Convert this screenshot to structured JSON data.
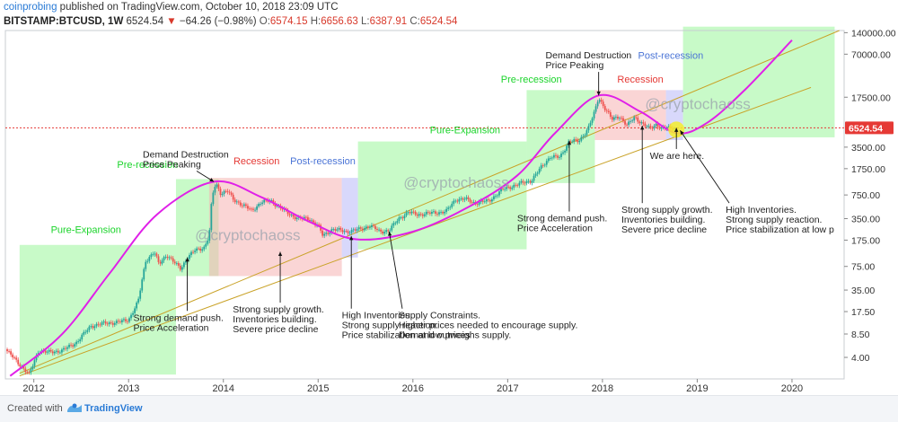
{
  "header": {
    "author": "coinprobing",
    "published_text": "published on TradingView.com, October 10, 2018 23:09 UTC",
    "symbol": "BITSTAMP:BTCUSD, 1W",
    "last_price": "6524.54",
    "change_arrow": "▼",
    "change": "−64.26 (−0.98%)",
    "o_label": "O:",
    "o_value": "6574.15",
    "h_label": "H:",
    "h_value": "6656.63",
    "l_label": "L:",
    "l_value": "6387.91",
    "c_label": "C:",
    "c_value": "6524.54"
  },
  "footer": {
    "created_with": "Created with",
    "brand": "TradingView",
    "logo_icon": "tradingview-logo-icon"
  },
  "colors": {
    "candle_up": "#26a69a",
    "candle_down": "#ef5350",
    "curve": "#e020e8",
    "trendline": "#c9a227",
    "expansion": "#9af59a",
    "recession": "#f5b3b3",
    "post_recession": "#b8b8f7",
    "price_line": "#e53935",
    "watermark": "#9aa3ad",
    "label_green": "#1bd42b",
    "label_red": "#e53935",
    "label_blue": "#4a74d6"
  },
  "chart_data": {
    "type": "candlestick",
    "scale": "log",
    "x_ticks": [
      "2012",
      "2013",
      "2014",
      "2015",
      "2016",
      "2017",
      "2018",
      "2019",
      "2020"
    ],
    "y_ticks": [
      "140000.00",
      "70000.00",
      "17500.00",
      "6524.54",
      "3500.00",
      "1750.00",
      "750.00",
      "350.00",
      "175.00",
      "75.00",
      "35.00",
      "17.50",
      "8.50",
      "4.00"
    ],
    "current_price": 6524.54,
    "weekly_close_path": [
      [
        2011.7,
        5.2
      ],
      [
        2011.85,
        3.2
      ],
      [
        2011.95,
        2.3
      ],
      [
        2012.05,
        5.0
      ],
      [
        2012.15,
        4.7
      ],
      [
        2012.3,
        5.0
      ],
      [
        2012.45,
        6.5
      ],
      [
        2012.6,
        11.0
      ],
      [
        2012.75,
        12.0
      ],
      [
        2012.9,
        12.5
      ],
      [
        2013.0,
        13.5
      ],
      [
        2013.1,
        24.0
      ],
      [
        2013.18,
        90.0
      ],
      [
        2013.27,
        120.0
      ],
      [
        2013.32,
        80.0
      ],
      [
        2013.4,
        110.0
      ],
      [
        2013.5,
        80.0
      ],
      [
        2013.55,
        70.0
      ],
      [
        2013.62,
        100.0
      ],
      [
        2013.7,
        125.0
      ],
      [
        2013.8,
        140.0
      ],
      [
        2013.85,
        200.0
      ],
      [
        2013.88,
        700.0
      ],
      [
        2013.92,
        1100.0
      ],
      [
        2013.97,
        800.0
      ],
      [
        2014.05,
        850.0
      ],
      [
        2014.1,
        650.0
      ],
      [
        2014.2,
        550.0
      ],
      [
        2014.3,
        450.0
      ],
      [
        2014.4,
        600.0
      ],
      [
        2014.5,
        620.0
      ],
      [
        2014.6,
        500.0
      ],
      [
        2014.7,
        400.0
      ],
      [
        2014.8,
        350.0
      ],
      [
        2014.9,
        350.0
      ],
      [
        2015.0,
        280.0
      ],
      [
        2015.05,
        200.0
      ],
      [
        2015.15,
        250.0
      ],
      [
        2015.3,
        230.0
      ],
      [
        2015.45,
        250.0
      ],
      [
        2015.55,
        280.0
      ],
      [
        2015.65,
        230.0
      ],
      [
        2015.75,
        240.0
      ],
      [
        2015.85,
        350.0
      ],
      [
        2015.95,
        430.0
      ],
      [
        2016.05,
        400.0
      ],
      [
        2016.2,
        420.0
      ],
      [
        2016.35,
        440.0
      ],
      [
        2016.45,
        650.0
      ],
      [
        2016.55,
        660.0
      ],
      [
        2016.65,
        580.0
      ],
      [
        2016.8,
        620.0
      ],
      [
        2016.95,
        900.0
      ],
      [
        2017.05,
        1000.0
      ],
      [
        2017.15,
        1100.0
      ],
      [
        2017.25,
        1200.0
      ],
      [
        2017.35,
        1800.0
      ],
      [
        2017.45,
        2600.0
      ],
      [
        2017.55,
        2500.0
      ],
      [
        2017.65,
        4300.0
      ],
      [
        2017.75,
        4200.0
      ],
      [
        2017.85,
        6500.0
      ],
      [
        2017.92,
        11000.0
      ],
      [
        2017.96,
        17500.0
      ],
      [
        2018.0,
        14000.0
      ],
      [
        2018.05,
        11000.0
      ],
      [
        2018.1,
        8500.0
      ],
      [
        2018.18,
        9500.0
      ],
      [
        2018.26,
        7000.0
      ],
      [
        2018.34,
        9200.0
      ],
      [
        2018.42,
        7500.0
      ],
      [
        2018.5,
        6300.0
      ],
      [
        2018.57,
        7400.0
      ],
      [
        2018.62,
        6400.0
      ],
      [
        2018.7,
        6500.0
      ],
      [
        2018.77,
        6524.54
      ]
    ],
    "phases": [
      {
        "name": "Pure-Expansion",
        "kind": "expansion",
        "x0": 2011.85,
        "x1": 2013.5,
        "y_low": 2.3,
        "y_high": 150
      },
      {
        "name": "Pre-recession",
        "kind": "expansion",
        "x0": 2013.5,
        "x1": 2013.95,
        "y_low": 55,
        "y_high": 1250
      },
      {
        "name": "Recession",
        "kind": "recession",
        "x0": 2013.85,
        "x1": 2015.25,
        "y_low": 55,
        "y_high": 1300
      },
      {
        "name": "Post-recession",
        "kind": "post_recession",
        "x0": 2015.25,
        "x1": 2015.42,
        "y_low": 100,
        "y_high": 1300
      },
      {
        "name": "Pure-Expansion",
        "kind": "expansion",
        "x0": 2015.42,
        "x1": 2017.2,
        "y_low": 130,
        "y_high": 4200
      },
      {
        "name": "Pre-recession",
        "kind": "expansion",
        "x0": 2017.2,
        "x1": 2017.92,
        "y_low": 1100,
        "y_high": 22000
      },
      {
        "name": "Recession",
        "kind": "recession",
        "x0": 2017.92,
        "x1": 2018.67,
        "y_low": 4400,
        "y_high": 22000
      },
      {
        "name": "Post-recession",
        "kind": "post_recession",
        "x0": 2018.67,
        "x1": 2018.85,
        "y_low": 4400,
        "y_high": 22000
      },
      {
        "name": "",
        "kind": "expansion",
        "x0": 2018.85,
        "x1": 2020.45,
        "y_low": 4800,
        "y_high": 170000
      }
    ],
    "phase_labels": [
      {
        "text": "Pure-Expansion",
        "color": "label_green",
        "x": 2012.55,
        "y": 220
      },
      {
        "text": "Pre-recession",
        "color": "label_green",
        "x": 2013.2,
        "y": 1800
      },
      {
        "text": "Recession",
        "color": "label_red",
        "x": 2014.35,
        "y": 2000
      },
      {
        "text": "Post-recession",
        "color": "label_blue",
        "x": 2015.05,
        "y": 2000
      },
      {
        "text": "Pure-Expansion",
        "color": "label_green",
        "x": 2016.55,
        "y": 5500
      },
      {
        "text": "Pre-recession",
        "color": "label_green",
        "x": 2017.25,
        "y": 28000
      },
      {
        "text": "Recession",
        "color": "label_red",
        "x": 2018.4,
        "y": 28000
      },
      {
        "text": "Post-recession",
        "color": "label_blue",
        "x": 2018.72,
        "y": 60000
      }
    ],
    "cycle_curves": [
      [
        [
          2011.75,
          2.2
        ],
        [
          2012.3,
          8.5
        ],
        [
          2012.8,
          60.0
        ],
        [
          2013.3,
          400.0
        ],
        [
          2013.9,
          1150.0
        ],
        [
          2014.4,
          700.0
        ],
        [
          2014.9,
          320.0
        ],
        [
          2015.4,
          180.0
        ],
        [
          2016.0,
          230.0
        ],
        [
          2016.6,
          520.0
        ],
        [
          2017.1,
          1400.0
        ],
        [
          2017.5,
          5500.0
        ],
        [
          2017.96,
          18500.0
        ],
        [
          2018.4,
          11000.0
        ],
        [
          2018.78,
          5500.0
        ],
        [
          2019.1,
          7600.0
        ],
        [
          2019.5,
          22000.0
        ],
        [
          2020.0,
          110000.0
        ]
      ]
    ],
    "trendlines": [
      [
        [
          2011.85,
          2.4
        ],
        [
          2020.5,
          150000.0
        ]
      ],
      [
        [
          2011.85,
          2.2
        ],
        [
          2020.2,
          24000.0
        ]
      ]
    ],
    "annotations": [
      {
        "lines": [
          "Demand Destruction",
          "Price Peaking"
        ],
        "x": 2013.15,
        "y": 2500,
        "arrow_to": [
          2013.9,
          1150
        ]
      },
      {
        "lines": [
          "Strong demand push.",
          "Price Acceleration"
        ],
        "x": 2013.05,
        "y": 13,
        "arrow_to": [
          2013.62,
          100
        ]
      },
      {
        "lines": [
          "Strong supply growth.",
          "Inventories building.",
          "Severe price decline"
        ],
        "x": 2014.1,
        "y": 17,
        "arrow_to": [
          2014.6,
          120
        ]
      },
      {
        "lines": [
          "High Inventories.",
          "Strong supply reaction.",
          "Price stabilization at low prices"
        ],
        "x": 2015.25,
        "y": 14,
        "arrow_to": [
          2015.35,
          200
        ]
      },
      {
        "lines": [
          "Supply Constraints.",
          "Higher prices needed to encourage supply.",
          "Demand outweighs supply."
        ],
        "x": 2015.85,
        "y": 14,
        "arrow_to": [
          2015.75,
          230
        ]
      },
      {
        "lines": [
          "Demand Destruction",
          "Price Peaking"
        ],
        "x": 2017.4,
        "y": 61000,
        "arrow_to": [
          2017.96,
          18500
        ]
      },
      {
        "lines": [
          "Strong demand push.",
          "Price Acceleration"
        ],
        "x": 2017.1,
        "y": 320,
        "arrow_to": [
          2017.65,
          4300
        ]
      },
      {
        "lines": [
          "Strong supply growth.",
          "Inventories building.",
          "Severe price decline"
        ],
        "x": 2018.2,
        "y": 420,
        "arrow_to": [
          2018.42,
          7000
        ]
      },
      {
        "lines": [
          "High Inventories.",
          "Strong supply reaction.",
          "Price stabilization at low p"
        ],
        "x": 2019.3,
        "y": 420,
        "arrow_to": [
          2018.82,
          6000
        ]
      },
      {
        "lines": [
          "We are here."
        ],
        "x": 2018.5,
        "y": 2400,
        "arrow_to": [
          2018.78,
          6524.54
        ]
      }
    ],
    "watermark": "@cryptochaoss"
  }
}
